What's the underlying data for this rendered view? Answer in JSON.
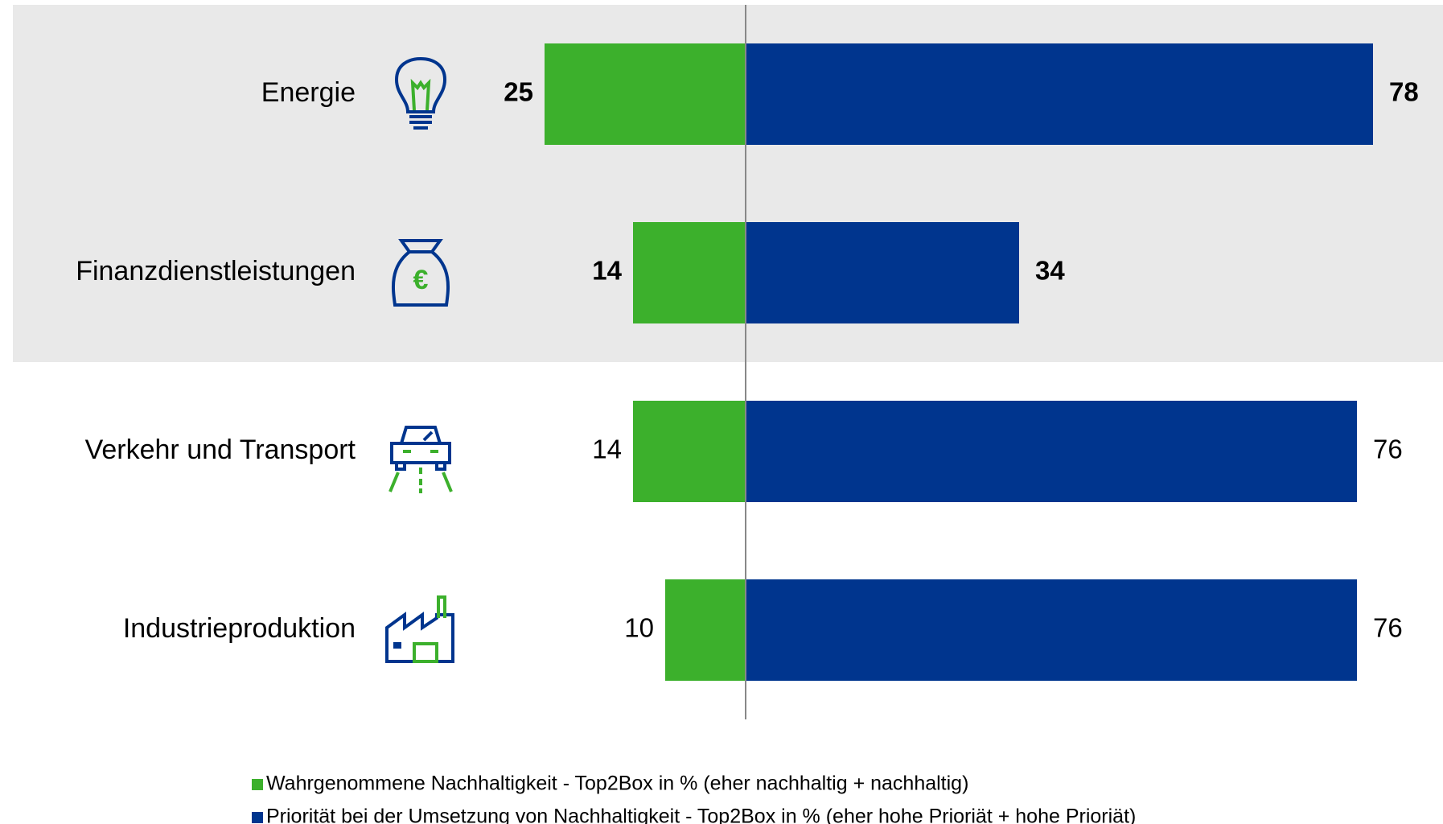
{
  "chart_data": {
    "type": "diverging_bar",
    "categories": [
      "Energie",
      "Finanzdienstleistungen",
      "Verkehr und Transport",
      "Industrieproduktion"
    ],
    "highlighted": [
      true,
      true,
      false,
      false
    ],
    "series": [
      {
        "name": "Wahrgenommene Nachhaltigkeit - Top2Box in % (eher nachhaltig + nachhaltig)",
        "color": "#3cb02c",
        "values": [
          25,
          14,
          14,
          10
        ]
      },
      {
        "name": "Priorität bei der Umsetzung von Nachhaltigkeit  - Top2Box in % (eher hohe Prioriät +  hohe Prioriät)",
        "color": "#00358e",
        "values": [
          78,
          34,
          76,
          76
        ]
      }
    ],
    "xlim": [
      -30,
      85
    ]
  }
}
